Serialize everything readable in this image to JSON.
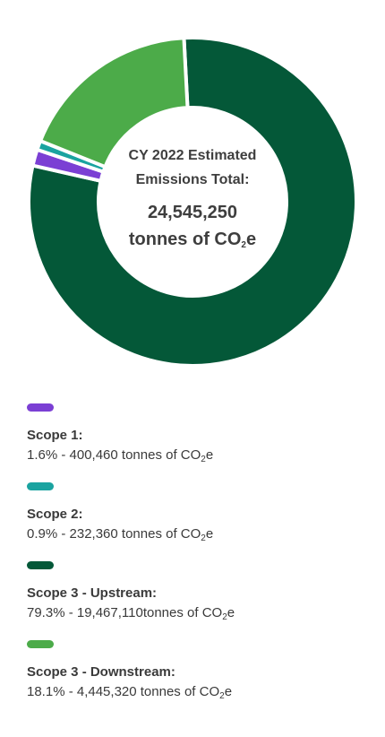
{
  "chart_data": {
    "type": "pie",
    "variant": "donut",
    "center": {
      "title_line1": "CY 2022 Estimated",
      "title_line2": "Emissions Total:",
      "value_line1": "24,545,250",
      "value_prefix": "tonnes of CO",
      "value_sub": "2",
      "value_suffix": "e"
    },
    "slices": [
      {
        "name": "Scope 1:",
        "percent": 1.6,
        "percent_label": "1.6%",
        "value": 400460,
        "detail_prefix": "1.6% - 400,460 tonnes of CO",
        "color": "#7b3fd4"
      },
      {
        "name": "Scope 2:",
        "percent": 0.9,
        "percent_label": "0.9%",
        "value": 232360,
        "detail_prefix": "0.9% - 232,360 tonnes of CO",
        "color": "#1aa3a0"
      },
      {
        "name": "Scope 3 - Upstream:",
        "percent": 79.3,
        "percent_label": "79.3%",
        "value": 19467110,
        "detail_prefix": "79.3% - 19,467,110tonnes of CO",
        "color": "#045838"
      },
      {
        "name": "Scope 3 - Downstream:",
        "percent": 18.1,
        "percent_label": "18.1%",
        "value": 4445320,
        "detail_prefix": "18.1% - 4,445,320 tonnes of CO",
        "color": "#4cab49"
      }
    ],
    "unit_sub": "2",
    "unit_suffix": "e"
  }
}
